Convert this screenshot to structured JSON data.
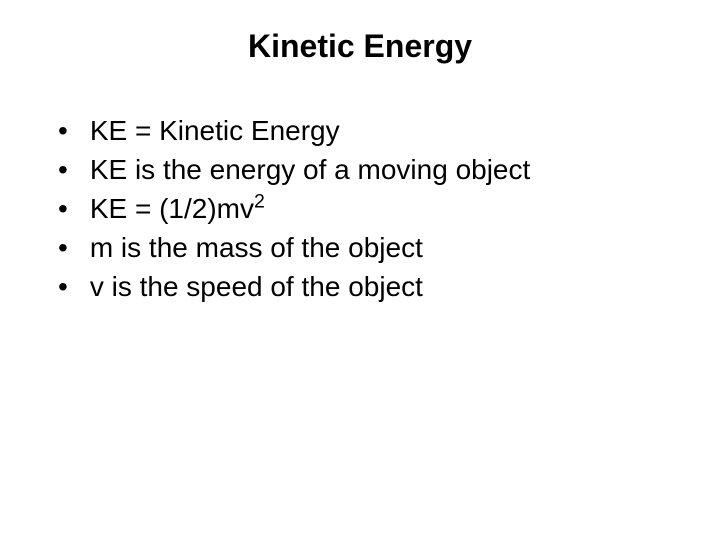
{
  "title": "Kinetic Energy",
  "bullets": {
    "item0": "KE = Kinetic Energy",
    "item1": "KE is the energy of a moving object",
    "item2_prefix": "KE = (1/2)mv",
    "item2_super": "2",
    "item3": "m is the mass of the object",
    "item4": "v is the speed of the object"
  },
  "style": {
    "background_color": "#ffffff",
    "text_color": "#000000",
    "title_fontsize": 32,
    "body_fontsize": 28,
    "font_family": "Arial"
  }
}
